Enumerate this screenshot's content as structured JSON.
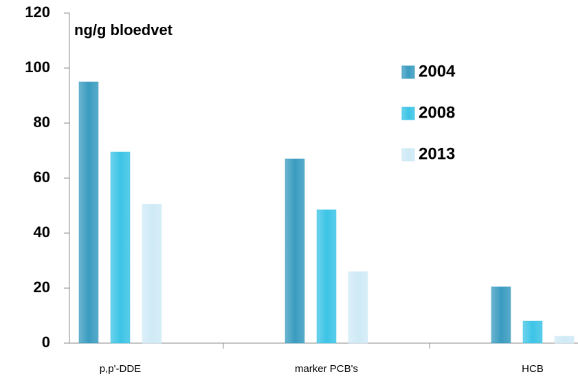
{
  "chart_data": {
    "type": "bar",
    "title": "ng/g bloedvet",
    "categories": [
      "p,p'-DDE",
      "marker PCB's",
      "HCB"
    ],
    "series": [
      {
        "name": "2004",
        "color": "#3a9cc0",
        "values": [
          95,
          67,
          20.5
        ]
      },
      {
        "name": "2008",
        "color": "#3cc4e6",
        "values": [
          69.5,
          48.5,
          8
        ]
      },
      {
        "name": "2013",
        "color": "#cfeaf6",
        "values": [
          50.5,
          26,
          2.5
        ]
      }
    ],
    "ylim": [
      0,
      120
    ],
    "yticks": [
      0,
      20,
      40,
      60,
      80,
      100,
      120
    ],
    "legend": "upper right"
  }
}
